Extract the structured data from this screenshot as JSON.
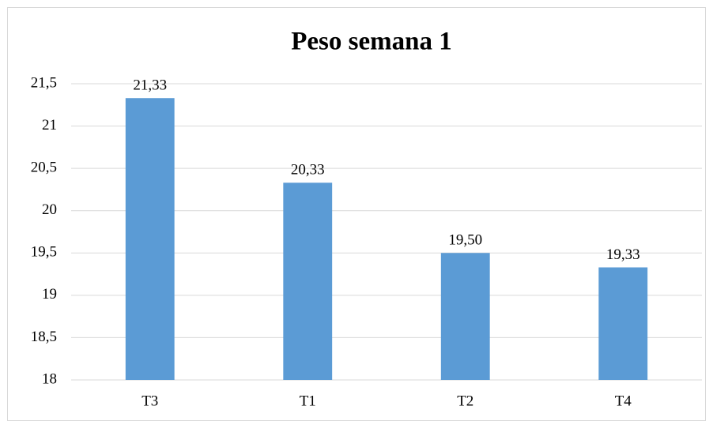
{
  "chart_data": {
    "type": "bar",
    "title": "Peso semana 1",
    "categories": [
      "T3",
      "T1",
      "T2",
      "T4"
    ],
    "values": [
      21.33,
      20.33,
      19.5,
      19.33
    ],
    "value_labels": [
      "21,33",
      "20,33",
      "19,50",
      "19,33"
    ],
    "color": "#5b9bd5",
    "ylim": [
      18,
      21.5
    ],
    "yticks": [
      18,
      {
        "value": 18.5,
        "label": "18,5"
      },
      19,
      {
        "value": 19.5,
        "label": "19,5"
      },
      20,
      {
        "value": 20.5,
        "label": "20,5"
      },
      21,
      {
        "value": 21.5,
        "label": "21,5"
      }
    ],
    "grid": true
  }
}
